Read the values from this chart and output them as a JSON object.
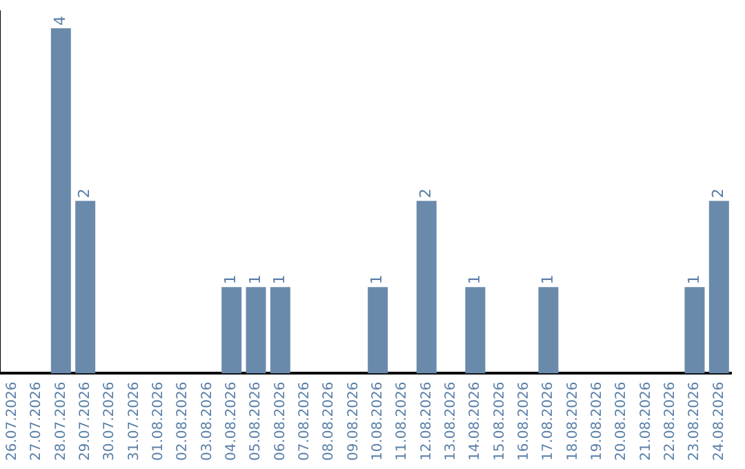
{
  "chart_data": {
    "type": "bar",
    "categories": [
      "26.07.2026",
      "27.07.2026",
      "28.07.2026",
      "29.07.2026",
      "30.07.2026",
      "31.07.2026",
      "01.08.2026",
      "02.08.2026",
      "03.08.2026",
      "04.08.2026",
      "05.08.2026",
      "06.08.2026",
      "07.08.2026",
      "08.08.2026",
      "09.08.2026",
      "10.08.2026",
      "11.08.2026",
      "12.08.2026",
      "13.08.2026",
      "14.08.2026",
      "15.08.2026",
      "16.08.2026",
      "17.08.2026",
      "18.08.2026",
      "19.08.2026",
      "20.08.2026",
      "21.08.2026",
      "22.08.2026",
      "23.08.2026",
      "24.08.2026"
    ],
    "values": [
      0,
      0,
      4,
      2,
      0,
      0,
      0,
      0,
      0,
      1,
      1,
      1,
      0,
      0,
      0,
      1,
      0,
      2,
      0,
      1,
      0,
      0,
      1,
      0,
      0,
      0,
      0,
      0,
      1,
      2
    ],
    "value_labels": [
      null,
      null,
      "4",
      "2",
      null,
      null,
      null,
      null,
      null,
      "1",
      "1",
      "1",
      null,
      null,
      null,
      "1",
      null,
      "2",
      null,
      "1",
      null,
      null,
      "1",
      null,
      null,
      null,
      null,
      null,
      "1",
      "2"
    ],
    "color": "#6a8aab",
    "grid": false,
    "legend": false
  }
}
